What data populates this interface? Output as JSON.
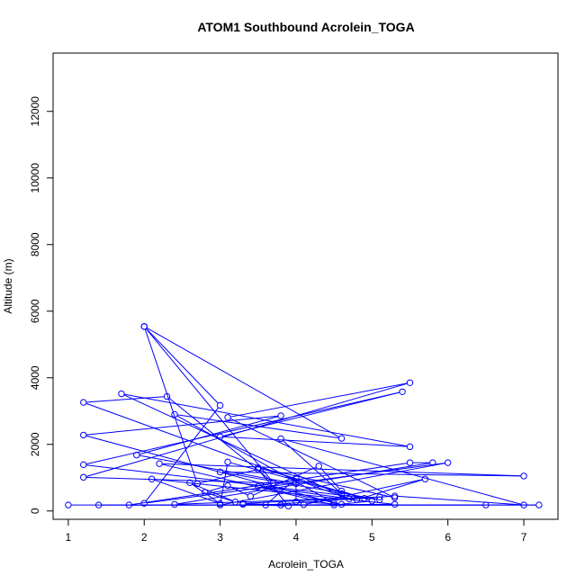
{
  "chart_data": {
    "type": "line",
    "title": "ATOM1 Southbound Acrolein_TOGA",
    "xlabel": "Acrolein_TOGA",
    "ylabel": "Altitude (m)",
    "xlim": [
      0.8,
      7.45
    ],
    "ylim": [
      -250,
      13750
    ],
    "xticks": [
      1,
      2,
      3,
      4,
      5,
      6,
      7
    ],
    "yticks": [
      0,
      2000,
      4000,
      6000,
      8000,
      10000,
      12000
    ],
    "grid": false,
    "legend": "none",
    "series": [
      {
        "color": "#0000ff",
        "markers": "open-circle",
        "points": [
          [
            1.0,
            180
          ],
          [
            7.2,
            180
          ],
          [
            1.4,
            180
          ],
          [
            6.5,
            180
          ],
          [
            1.8,
            180
          ],
          [
            5.5,
            1450
          ],
          [
            5.8,
            1450
          ],
          [
            2.4,
            200
          ],
          [
            5.1,
            420
          ],
          [
            3.3,
            230
          ],
          [
            3.8,
            180
          ],
          [
            5.3,
            200
          ],
          [
            2.1,
            960
          ],
          [
            3.0,
            220
          ],
          [
            2.6,
            850
          ],
          [
            3.2,
            270
          ],
          [
            2.8,
            560
          ],
          [
            3.1,
            760
          ],
          [
            3.4,
            440
          ],
          [
            4.3,
            1350
          ],
          [
            4.6,
            600
          ],
          [
            5.0,
            300
          ],
          [
            4.5,
            180
          ],
          [
            2.2,
            1420
          ],
          [
            7.0,
            1050
          ],
          [
            3.0,
            1170
          ],
          [
            5.1,
            340
          ],
          [
            1.2,
            1390
          ],
          [
            5.4,
            3580
          ],
          [
            3.0,
            2230
          ],
          [
            5.5,
            1930
          ],
          [
            1.7,
            3520
          ],
          [
            4.7,
            360
          ],
          [
            1.2,
            3260
          ],
          [
            2.3,
            3440
          ],
          [
            3.7,
            850
          ],
          [
            2.0,
            5540
          ],
          [
            4.6,
            2180
          ],
          [
            2.4,
            2900
          ],
          [
            4.5,
            240
          ],
          [
            1.2,
            2280
          ],
          [
            3.8,
            2860
          ],
          [
            1.9,
            1680
          ],
          [
            4.0,
            820
          ],
          [
            1.2,
            1010
          ],
          [
            5.5,
            3850
          ],
          [
            3.1,
            2810
          ],
          [
            5.3,
            400
          ],
          [
            3.5,
            1300
          ],
          [
            4.9,
            380
          ],
          [
            3.1,
            1470
          ],
          [
            3.0,
            180
          ],
          [
            6.0,
            1450
          ],
          [
            2.0,
            230
          ],
          [
            3.0,
            3170
          ],
          [
            2.0,
            5540
          ],
          [
            2.7,
            820
          ],
          [
            3.5,
            1250
          ],
          [
            3.9,
            150
          ],
          [
            3.3,
            200
          ],
          [
            4.1,
            190
          ],
          [
            5.7,
            960
          ],
          [
            4.8,
            340
          ],
          [
            3.5,
            740
          ],
          [
            4.6,
            200
          ],
          [
            4.0,
            280
          ],
          [
            4.0,
            980
          ],
          [
            3.6,
            180
          ],
          [
            5.3,
            450
          ],
          [
            7.0,
            180
          ],
          [
            3.8,
            2170
          ],
          [
            4.6,
            520
          ]
        ]
      }
    ]
  }
}
